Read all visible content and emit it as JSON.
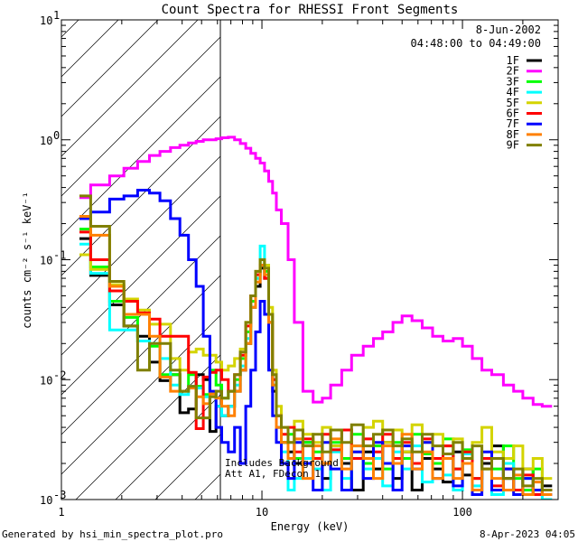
{
  "chart_data": {
    "type": "line",
    "title": "Count Spectra for RHESSI Front Segments",
    "xlabel": "Energy (keV)",
    "ylabel": "counts cm⁻² s⁻¹ keV⁻¹",
    "xscale": "log",
    "yscale": "log",
    "xlim": [
      1,
      300
    ],
    "ylim": [
      0.001,
      10
    ],
    "x_tick_labels": [
      {
        "value": 1,
        "label": "1"
      },
      {
        "value": 10,
        "label": "10"
      },
      {
        "value": 100,
        "label": "100"
      }
    ],
    "y_tick_labels": [
      {
        "value": 10,
        "base": "10",
        "exp": "1"
      },
      {
        "value": 1,
        "base": "10",
        "exp": "0"
      },
      {
        "value": 0.1,
        "base": "10",
        "exp": "-1"
      },
      {
        "value": 0.01,
        "base": "10",
        "exp": "-2"
      },
      {
        "value": 0.001,
        "base": "10",
        "exp": "-3"
      }
    ],
    "hatched_region_keV": [
      1,
      6.2
    ],
    "legend_header": [
      "8-Jun-2002",
      "04:48:00 to 04:49:00"
    ],
    "legend_position": "top-right",
    "annotations": [
      "Includes Background",
      "Att A1, FDecon 1"
    ],
    "energy_edges": [
      1.23,
      1.4,
      1.74,
      2.05,
      2.4,
      2.75,
      3.1,
      3.5,
      3.9,
      4.3,
      4.7,
      5.1,
      5.5,
      5.9,
      6.3,
      6.8,
      7.3,
      7.8,
      8.3,
      8.8,
      9.3,
      9.8,
      10.3,
      10.8,
      11.3,
      11.8,
      12.5,
      13.5,
      14.5,
      16,
      18,
      20,
      22,
      25,
      28,
      32,
      36,
      40,
      45,
      50,
      56,
      63,
      71,
      80,
      90,
      100,
      112,
      125,
      140,
      160,
      180,
      200,
      225,
      250,
      280
    ],
    "series": [
      {
        "name": "1F",
        "color": "#000000",
        "values": [
          0.15,
          0.074,
          0.042,
          0.028,
          0.023,
          0.014,
          0.0098,
          0.011,
          0.0053,
          0.0057,
          0.011,
          0.01,
          0.0037,
          0.006,
          0.005,
          0.006,
          0.008,
          0.012,
          0.02,
          0.04,
          0.06,
          0.085,
          0.07,
          0.03,
          0.008,
          0.004,
          0.003,
          0.0025,
          0.002,
          0.003,
          0.0022,
          0.0015,
          0.0028,
          0.002,
          0.0012,
          0.0025,
          0.0018,
          0.003,
          0.0015,
          0.0025,
          0.0012,
          0.0022,
          0.0018,
          0.0014,
          0.0025,
          0.0016,
          0.0012,
          0.002,
          0.0028,
          0.0015,
          0.0012,
          0.0018,
          0.0011,
          0.0013
        ]
      },
      {
        "name": "2F",
        "color": "#ff00ff",
        "values": [
          0.33,
          0.42,
          0.5,
          0.58,
          0.66,
          0.74,
          0.8,
          0.86,
          0.9,
          0.94,
          0.97,
          1.0,
          1.0,
          1.02,
          1.04,
          1.05,
          1.0,
          0.93,
          0.85,
          0.77,
          0.7,
          0.64,
          0.55,
          0.45,
          0.36,
          0.26,
          0.2,
          0.1,
          0.03,
          0.008,
          0.0065,
          0.007,
          0.009,
          0.012,
          0.016,
          0.019,
          0.022,
          0.025,
          0.03,
          0.034,
          0.031,
          0.027,
          0.023,
          0.021,
          0.022,
          0.019,
          0.015,
          0.012,
          0.011,
          0.009,
          0.008,
          0.007,
          0.0062,
          0.006
        ]
      },
      {
        "name": "3F",
        "color": "#00ff00",
        "values": [
          0.18,
          0.087,
          0.045,
          0.033,
          0.021,
          0.019,
          0.011,
          0.011,
          0.008,
          0.011,
          0.0088,
          0.0075,
          0.012,
          0.009,
          0.007,
          0.008,
          0.01,
          0.015,
          0.025,
          0.045,
          0.07,
          0.1,
          0.08,
          0.035,
          0.01,
          0.005,
          0.003,
          0.0035,
          0.0022,
          0.003,
          0.0025,
          0.002,
          0.003,
          0.0022,
          0.0035,
          0.002,
          0.0028,
          0.0018,
          0.003,
          0.0022,
          0.0035,
          0.0024,
          0.002,
          0.0032,
          0.0018,
          0.0026,
          0.0015,
          0.0022,
          0.0018,
          0.0028,
          0.0015,
          0.0012,
          0.0018,
          0.0012
        ]
      },
      {
        "name": "4F",
        "color": "#00ffff",
        "values": [
          0.135,
          0.077,
          0.026,
          0.026,
          0.021,
          0.02,
          0.015,
          0.009,
          0.0075,
          0.0088,
          0.0085,
          0.0072,
          0.0076,
          0.006,
          0.005,
          0.006,
          0.009,
          0.013,
          0.022,
          0.04,
          0.07,
          0.13,
          0.09,
          0.03,
          0.009,
          0.004,
          0.0025,
          0.0012,
          0.0015,
          0.0022,
          0.0018,
          0.0012,
          0.0025,
          0.0015,
          0.0028,
          0.0018,
          0.0022,
          0.0013,
          0.0025,
          0.0018,
          0.0028,
          0.0014,
          0.0022,
          0.0016,
          0.0012,
          0.0024,
          0.0013,
          0.0018,
          0.0011,
          0.002,
          0.0012,
          0.0015,
          0.0011,
          0.001
        ]
      },
      {
        "name": "5F",
        "color": "#d4d400",
        "values": [
          0.11,
          0.083,
          0.062,
          0.047,
          0.038,
          0.029,
          0.029,
          0.015,
          0.012,
          0.017,
          0.018,
          0.016,
          0.016,
          0.014,
          0.012,
          0.013,
          0.015,
          0.018,
          0.03,
          0.05,
          0.08,
          0.1,
          0.09,
          0.04,
          0.012,
          0.006,
          0.004,
          0.003,
          0.0045,
          0.0035,
          0.003,
          0.004,
          0.0028,
          0.0038,
          0.0025,
          0.004,
          0.0045,
          0.003,
          0.0038,
          0.0025,
          0.0042,
          0.003,
          0.0035,
          0.0028,
          0.0032,
          0.0025,
          0.003,
          0.004,
          0.0025,
          0.0022,
          0.0028,
          0.0018,
          0.0022,
          0.0015
        ]
      },
      {
        "name": "6F",
        "color": "#ff0000",
        "values": [
          0.17,
          0.1,
          0.055,
          0.045,
          0.036,
          0.032,
          0.023,
          0.023,
          0.023,
          0.0115,
          0.0039,
          0.0105,
          0.0115,
          0.012,
          0.01,
          0.008,
          0.011,
          0.016,
          0.028,
          0.05,
          0.075,
          0.09,
          0.07,
          0.03,
          0.01,
          0.005,
          0.0035,
          0.004,
          0.0025,
          0.0032,
          0.0022,
          0.0035,
          0.0026,
          0.0038,
          0.0022,
          0.0032,
          0.0025,
          0.0035,
          0.0022,
          0.003,
          0.002,
          0.0032,
          0.0022,
          0.0028,
          0.0018,
          0.0025,
          0.0015,
          0.0022,
          0.0013,
          0.0018,
          0.0012,
          0.0016,
          0.0011,
          0.0012
        ]
      },
      {
        "name": "7F",
        "color": "#0000ff",
        "values": [
          0.22,
          0.25,
          0.32,
          0.34,
          0.38,
          0.36,
          0.31,
          0.22,
          0.16,
          0.1,
          0.06,
          0.023,
          0.008,
          0.004,
          0.003,
          0.0025,
          0.004,
          0.002,
          0.006,
          0.012,
          0.025,
          0.045,
          0.035,
          0.012,
          0.005,
          0.003,
          0.002,
          0.0015,
          0.003,
          0.002,
          0.0012,
          0.003,
          0.0018,
          0.0012,
          0.0025,
          0.0015,
          0.003,
          0.002,
          0.0012,
          0.0028,
          0.0018,
          0.003,
          0.0015,
          0.0022,
          0.0013,
          0.002,
          0.0011,
          0.0025,
          0.0012,
          0.0018,
          0.0011,
          0.0015,
          0.0012,
          0.0011
        ]
      },
      {
        "name": "8F",
        "color": "#ff8000",
        "values": [
          0.23,
          0.16,
          0.06,
          0.035,
          0.035,
          0.023,
          0.0105,
          0.008,
          0.008,
          0.0085,
          0.0072,
          0.0063,
          0.0076,
          0.007,
          0.006,
          0.005,
          0.008,
          0.012,
          0.02,
          0.04,
          0.065,
          0.09,
          0.075,
          0.03,
          0.009,
          0.004,
          0.003,
          0.0022,
          0.0032,
          0.0015,
          0.0028,
          0.002,
          0.0032,
          0.0018,
          0.0028,
          0.0022,
          0.0015,
          0.0028,
          0.002,
          0.0035,
          0.0018,
          0.0025,
          0.0015,
          0.0022,
          0.0015,
          0.002,
          0.0012,
          0.0018,
          0.0015,
          0.0012,
          0.0016,
          0.0011,
          0.0014,
          0.0011
        ]
      },
      {
        "name": "9F",
        "color": "#808000",
        "values": [
          0.34,
          0.19,
          0.066,
          0.028,
          0.012,
          0.02,
          0.02,
          0.012,
          0.008,
          0.0088,
          0.0048,
          0.0048,
          0.0072,
          0.008,
          0.007,
          0.008,
          0.011,
          0.017,
          0.03,
          0.05,
          0.08,
          0.1,
          0.085,
          0.035,
          0.011,
          0.005,
          0.004,
          0.003,
          0.0038,
          0.0028,
          0.0035,
          0.0025,
          0.0038,
          0.003,
          0.0042,
          0.0028,
          0.0035,
          0.0038,
          0.0028,
          0.0032,
          0.0025,
          0.0035,
          0.0028,
          0.0024,
          0.003,
          0.0022,
          0.0028,
          0.0018,
          0.0022,
          0.0015,
          0.0018,
          0.0013,
          0.0015,
          0.0012
        ]
      }
    ]
  },
  "footer": {
    "generated_by": "Generated by hsi_min_spectra_plot.pro",
    "timestamp": "8-Apr-2023 04:05"
  }
}
